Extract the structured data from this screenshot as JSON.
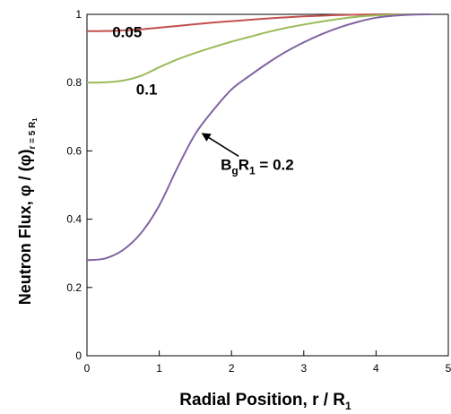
{
  "chart_data": {
    "type": "line",
    "xlabel": {
      "main": "Radial Position, r / R",
      "sub": "1"
    },
    "ylabel": {
      "main": "Neutron Flux, φ / (φ)",
      "sub": "r = 5 R",
      "subsub": "1"
    },
    "xlim": [
      0,
      5
    ],
    "ylim": [
      0,
      1
    ],
    "xticks": [
      "0",
      "1",
      "2",
      "3",
      "4",
      "5"
    ],
    "yticks": [
      "0",
      "0.2",
      "0.4",
      "0.6",
      "0.8",
      "1"
    ],
    "grid": false,
    "series": [
      {
        "name": "0.05",
        "color": "#c0504d",
        "x": [
          0,
          0.25,
          0.5,
          0.75,
          1.0,
          1.25,
          1.5,
          1.75,
          2.0,
          2.25,
          2.5,
          2.75,
          3.0,
          3.25,
          3.5,
          3.75,
          4.0,
          4.25,
          4.5,
          4.75
        ],
        "y": [
          0.951,
          0.951,
          0.953,
          0.956,
          0.961,
          0.966,
          0.971,
          0.976,
          0.98,
          0.984,
          0.988,
          0.991,
          0.994,
          0.996,
          0.998,
          0.999,
          1.0,
          1.0,
          1.0,
          1.0
        ]
      },
      {
        "name": "0.1",
        "color": "#9bbb59",
        "x": [
          0,
          0.25,
          0.5,
          0.75,
          1.0,
          1.25,
          1.5,
          1.75,
          2.0,
          2.25,
          2.5,
          2.75,
          3.0,
          3.25,
          3.5,
          3.75,
          4.0,
          4.25,
          4.5,
          4.75
        ],
        "y": [
          0.8,
          0.801,
          0.806,
          0.82,
          0.845,
          0.868,
          0.887,
          0.904,
          0.92,
          0.934,
          0.948,
          0.96,
          0.97,
          0.979,
          0.987,
          0.993,
          0.997,
          0.999,
          1.0,
          1.0
        ]
      },
      {
        "name": "0.2",
        "color": "#8064a2",
        "x": [
          0,
          0.25,
          0.5,
          0.75,
          1.0,
          1.25,
          1.5,
          1.75,
          2.0,
          2.25,
          2.5,
          2.75,
          3.0,
          3.25,
          3.5,
          3.75,
          4.0,
          4.25,
          4.5,
          4.75
        ],
        "y": [
          0.28,
          0.285,
          0.31,
          0.36,
          0.44,
          0.55,
          0.65,
          0.72,
          0.78,
          0.82,
          0.857,
          0.89,
          0.918,
          0.942,
          0.962,
          0.978,
          0.99,
          0.996,
          0.999,
          1.0
        ]
      }
    ],
    "annotations": [
      {
        "text": "0.05",
        "x": 0.35,
        "y": 0.933
      },
      {
        "text": "0.1",
        "x": 0.68,
        "y": 0.765
      },
      {
        "text_main": "B",
        "text_sub_g": "g",
        "text_R": "R",
        "text_sub_1": "1",
        "text_rest": " = 0.2",
        "x": 1.85,
        "y": 0.545,
        "arrow_to": {
          "x": 1.58,
          "y": 0.655
        }
      }
    ]
  }
}
